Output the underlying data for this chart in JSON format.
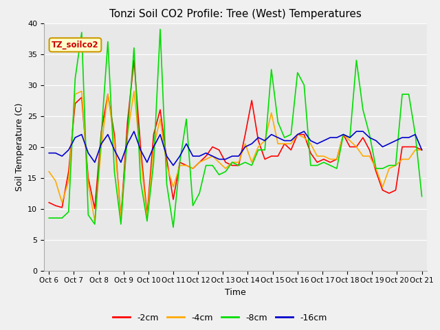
{
  "title": "Tonzi Soil CO2 Profile: Tree (West) Temperatures",
  "xlabel": "Time",
  "ylabel": "Soil Temperature (C)",
  "legend_label": "TZ_soilco2",
  "ylim": [
    0,
    40
  ],
  "yticks": [
    0,
    5,
    10,
    15,
    20,
    25,
    30,
    35,
    40
  ],
  "series_labels": [
    "-2cm",
    "-4cm",
    "-8cm",
    "-16cm"
  ],
  "series_colors": [
    "#ff0000",
    "#ffaa00",
    "#00dd00",
    "#0000cc"
  ],
  "fig_facecolor": "#f0f0f0",
  "ax_facecolor": "#e8e8e8",
  "tick_labels": [
    "Oct 6",
    "Oct 7",
    "Oct 8",
    "Oct 9",
    "Oct 10",
    "Oct 11",
    "Oct 12",
    "Oct 13",
    "Oct 14",
    "Oct 15",
    "Oct 16",
    "Oct 17",
    "Oct 18",
    "Oct 19",
    "Oct 20",
    "Oct 21"
  ],
  "data_2cm": [
    11.0,
    10.5,
    10.2,
    16.0,
    27.0,
    28.0,
    15.0,
    10.0,
    22.5,
    28.5,
    22.0,
    8.5,
    24.0,
    34.0,
    20.0,
    9.0,
    22.0,
    26.0,
    18.0,
    11.5,
    17.5,
    17.0,
    16.5,
    17.5,
    18.5,
    20.0,
    19.5,
    17.5,
    17.0,
    17.0,
    22.0,
    27.5,
    21.0,
    18.0,
    18.5,
    18.5,
    20.5,
    19.5,
    22.0,
    22.0,
    19.0,
    17.5,
    18.0,
    17.5,
    18.0,
    22.0,
    20.0,
    20.0,
    21.5,
    19.5,
    16.0,
    13.0,
    12.5,
    13.0,
    20.0,
    20.0,
    20.0,
    19.5
  ],
  "data_4cm": [
    16.0,
    14.5,
    11.0,
    14.5,
    28.5,
    29.0,
    14.0,
    8.0,
    20.0,
    28.5,
    21.0,
    8.5,
    22.0,
    29.0,
    18.5,
    8.5,
    20.0,
    24.5,
    17.0,
    13.5,
    17.0,
    17.0,
    16.5,
    17.5,
    18.0,
    18.5,
    17.5,
    16.5,
    17.5,
    17.5,
    20.5,
    17.5,
    20.0,
    21.0,
    25.5,
    20.5,
    20.5,
    20.5,
    22.0,
    21.5,
    20.5,
    18.5,
    18.5,
    18.0,
    18.0,
    22.0,
    21.0,
    20.0,
    18.5,
    18.5,
    16.5,
    13.5,
    16.5,
    17.0,
    18.0,
    18.0,
    19.5,
    19.5
  ],
  "data_8cm": [
    8.5,
    8.5,
    8.5,
    9.5,
    31.0,
    38.5,
    9.0,
    7.5,
    22.0,
    37.0,
    16.0,
    7.5,
    22.0,
    36.0,
    14.5,
    8.0,
    17.5,
    39.0,
    14.0,
    7.0,
    17.5,
    24.5,
    10.5,
    12.5,
    17.0,
    17.0,
    15.5,
    16.0,
    17.5,
    17.0,
    17.5,
    17.0,
    19.5,
    19.5,
    32.5,
    24.0,
    21.5,
    22.0,
    32.0,
    30.0,
    17.0,
    17.0,
    17.5,
    17.0,
    16.5,
    22.0,
    21.5,
    34.0,
    26.0,
    22.0,
    16.5,
    16.5,
    17.0,
    17.0,
    28.5,
    28.5,
    22.0,
    12.0
  ],
  "data_16cm": [
    19.0,
    19.0,
    18.5,
    19.5,
    21.5,
    22.0,
    19.0,
    17.5,
    20.5,
    22.0,
    19.5,
    17.5,
    20.5,
    22.5,
    19.5,
    17.5,
    20.0,
    22.0,
    18.5,
    17.0,
    18.5,
    20.5,
    18.5,
    18.5,
    19.0,
    18.5,
    18.0,
    18.0,
    18.5,
    18.5,
    20.0,
    20.5,
    21.5,
    21.0,
    22.0,
    21.5,
    21.0,
    21.0,
    22.0,
    22.5,
    21.0,
    20.5,
    21.0,
    21.5,
    21.5,
    22.0,
    21.5,
    22.5,
    22.5,
    21.5,
    21.0,
    20.0,
    20.5,
    21.0,
    21.5,
    21.5,
    22.0,
    19.5
  ]
}
